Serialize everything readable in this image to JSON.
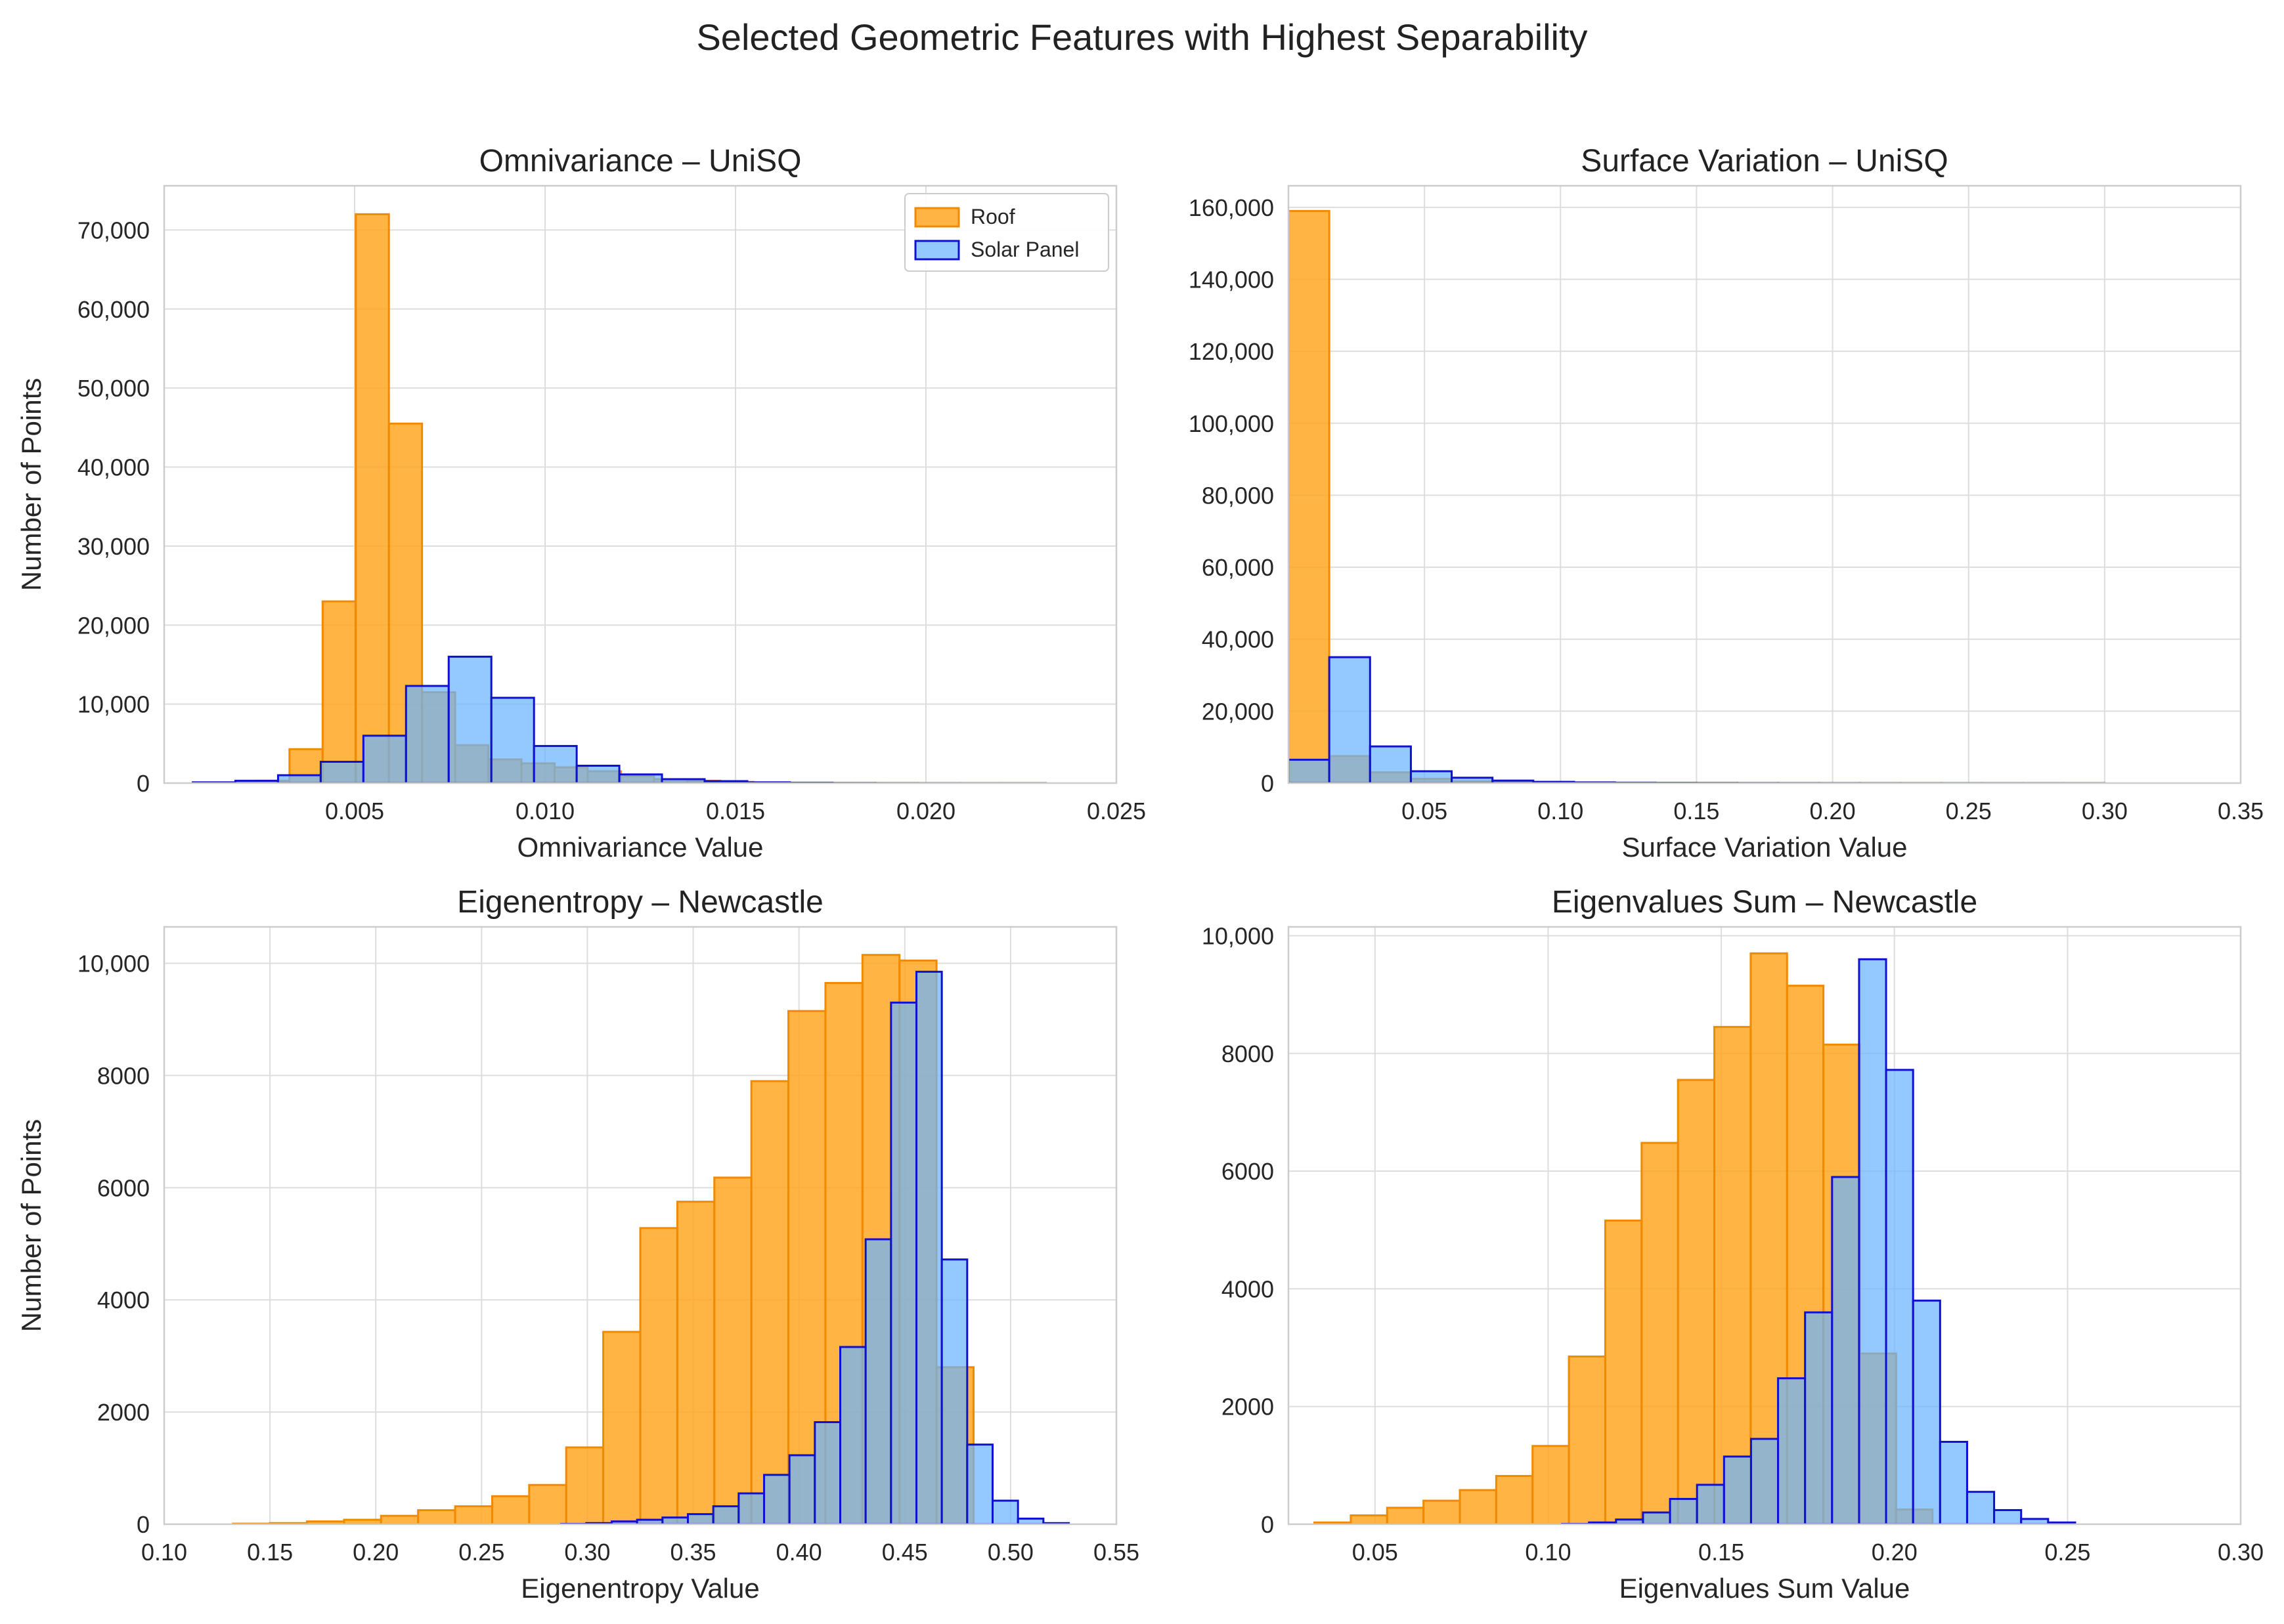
{
  "figure_title": "Selected Geometric Features with Highest Separability",
  "colors": {
    "roof_fill": "#ffa41b",
    "roof_edge": "#f08a00",
    "solar_fill": "#6ab4ff",
    "solar_edge": "#1010d0",
    "overlap_fill": "#8b9a8e",
    "grid": "#dddddd",
    "frame": "#cccccc",
    "text": "#262626"
  },
  "chart_data": [
    {
      "type": "histogram",
      "title": "Omnivariance – UniSQ",
      "xlabel": "Omnivariance Value",
      "ylabel": "Number of Points",
      "xlim": [
        0.0,
        0.025
      ],
      "ylim": [
        0,
        75600
      ],
      "xticks": [
        0.005,
        0.01,
        0.015,
        0.02,
        0.025
      ],
      "xtick_labels": [
        "0.005",
        "0.010",
        "0.015",
        "0.020",
        "0.025"
      ],
      "yticks": [
        0,
        10000,
        20000,
        30000,
        40000,
        50000,
        60000,
        70000
      ],
      "ytick_labels": [
        "0",
        "10,000",
        "20,000",
        "30,000",
        "40,000",
        "50,000",
        "60,000",
        "70,000"
      ],
      "legend": {
        "position": "upper-right",
        "entries": [
          "Roof",
          "Solar Panel"
        ]
      },
      "series": [
        {
          "name": "Roof",
          "bin_start": 0.00155,
          "bin_width": 0.00087,
          "values": [
            50,
            300,
            4300,
            23000,
            72000,
            45500,
            11500,
            4800,
            3000,
            2500,
            2000,
            1500,
            900,
            500,
            300,
            150,
            70,
            30,
            10,
            5
          ]
        },
        {
          "name": "Solar Panel",
          "bin_start": 0.00075,
          "bin_width": 0.00112,
          "values": [
            100,
            300,
            1000,
            2700,
            6000,
            12300,
            16000,
            10800,
            4700,
            2200,
            1100,
            500,
            250,
            100,
            50,
            20,
            10,
            5,
            3,
            2
          ]
        }
      ]
    },
    {
      "type": "histogram",
      "title": "Surface Variation – UniSQ",
      "xlabel": "Surface Variation Value",
      "ylabel": "",
      "xlim": [
        0.0,
        0.35
      ],
      "ylim": [
        0,
        166000
      ],
      "xticks": [
        0.05,
        0.1,
        0.15,
        0.2,
        0.25,
        0.3,
        0.35
      ],
      "xtick_labels": [
        "0.05",
        "0.10",
        "0.15",
        "0.20",
        "0.25",
        "0.30",
        "0.35"
      ],
      "yticks": [
        0,
        20000,
        40000,
        60000,
        80000,
        100000,
        120000,
        140000,
        160000
      ],
      "ytick_labels": [
        "0",
        "20,000",
        "40,000",
        "60,000",
        "80,000",
        "100,000",
        "120,000",
        "140,000",
        "160,000"
      ],
      "series": [
        {
          "name": "Roof",
          "bin_start": 0.0,
          "bin_width": 0.015,
          "values": [
            159000,
            7500,
            3000,
            1200,
            500,
            200,
            100,
            50,
            30,
            20,
            10,
            5
          ]
        },
        {
          "name": "Solar Panel",
          "bin_start": 0.0,
          "bin_width": 0.015,
          "values": [
            6500,
            35000,
            10200,
            3300,
            1500,
            700,
            350,
            200,
            120,
            80,
            60,
            40,
            30,
            25,
            20,
            15,
            12,
            10,
            8,
            6
          ]
        }
      ]
    },
    {
      "type": "histogram",
      "title": "Eigenentropy – Newcastle",
      "xlabel": "Eigenentropy Value",
      "ylabel": "Number of Points",
      "xlim": [
        0.1,
        0.55
      ],
      "ylim": [
        0,
        10650
      ],
      "xticks": [
        0.1,
        0.15,
        0.2,
        0.25,
        0.3,
        0.35,
        0.4,
        0.45,
        0.5,
        0.55
      ],
      "xtick_labels": [
        "0.10",
        "0.15",
        "0.20",
        "0.25",
        "0.30",
        "0.35",
        "0.40",
        "0.45",
        "0.50",
        "0.55"
      ],
      "yticks": [
        0,
        2000,
        4000,
        6000,
        8000,
        10000
      ],
      "ytick_labels": [
        "0",
        "2000",
        "4000",
        "6000",
        "8000",
        "10,000"
      ],
      "series": [
        {
          "name": "Roof",
          "bin_start": 0.1325,
          "bin_width": 0.0175,
          "values": [
            10,
            20,
            50,
            80,
            150,
            250,
            320,
            500,
            700,
            1370,
            3430,
            5280,
            5750,
            6180,
            7900,
            9150,
            9650,
            10150,
            10050,
            2800
          ]
        },
        {
          "name": "Solar Panel",
          "bin_start": 0.2875,
          "bin_width": 0.012,
          "values": [
            5,
            20,
            50,
            80,
            120,
            180,
            320,
            550,
            880,
            1230,
            1820,
            3160,
            5080,
            9300,
            9850,
            4720,
            1420,
            420,
            100,
            20
          ]
        }
      ]
    },
    {
      "type": "histogram",
      "title": "Eigenvalues Sum – Newcastle",
      "xlabel": "Eigenvalues Sum Value",
      "ylabel": "",
      "xlim": [
        0.025,
        0.3
      ],
      "ylim": [
        0,
        10150
      ],
      "xticks": [
        0.05,
        0.1,
        0.15,
        0.2,
        0.25,
        0.3
      ],
      "xtick_labels": [
        "0.05",
        "0.10",
        "0.15",
        "0.20",
        "0.25",
        "0.30"
      ],
      "yticks": [
        0,
        2000,
        4000,
        6000,
        8000,
        10000
      ],
      "ytick_labels": [
        "0",
        "2000",
        "4000",
        "6000",
        "8000",
        "10,000"
      ],
      "series": [
        {
          "name": "Roof",
          "bin_start": 0.0325,
          "bin_width": 0.0105,
          "values": [
            30,
            150,
            280,
            400,
            580,
            820,
            1330,
            2850,
            5160,
            6480,
            7550,
            8450,
            9700,
            9150,
            8150,
            2900,
            250
          ]
        },
        {
          "name": "Solar Panel",
          "bin_start": 0.104,
          "bin_width": 0.0078,
          "values": [
            5,
            30,
            80,
            200,
            430,
            670,
            1150,
            1450,
            2480,
            3600,
            5900,
            9600,
            7720,
            3800,
            1400,
            550,
            240,
            90,
            30
          ]
        }
      ]
    }
  ]
}
